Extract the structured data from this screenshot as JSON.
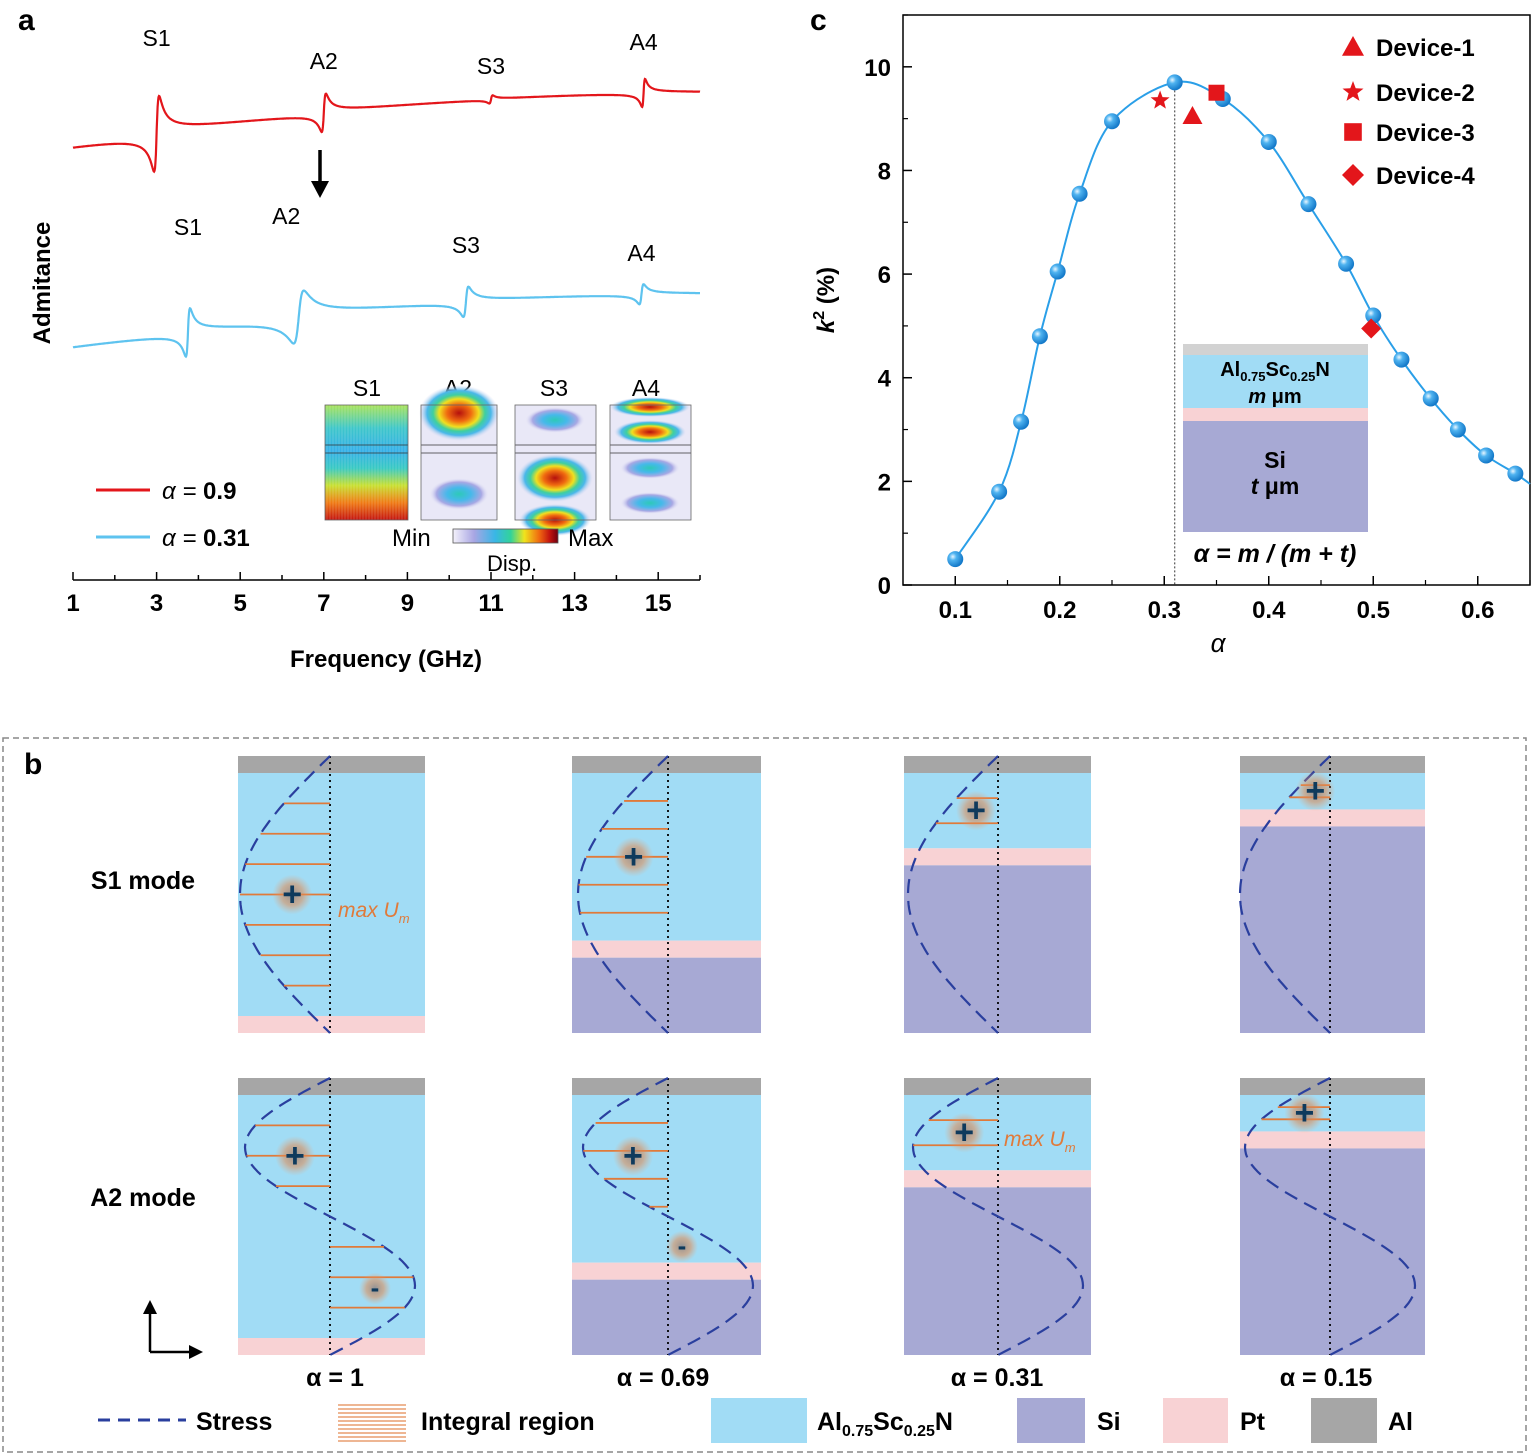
{
  "colors": {
    "red": "#e3161b",
    "blue": "#5ec3ef",
    "dot": "#2a9fe8",
    "alscn": "#a1dcf5",
    "si": "#a7a9d4",
    "pt": "#f8d2d4",
    "al": "#a6a6a6",
    "stress": "#2a3f9e",
    "integral": "#e07a3a"
  },
  "chart_data": [
    {
      "panel": "a",
      "type": "line",
      "xlabel": "Frequency (GHz)",
      "ylabel": "Admitance",
      "xlim": [
        1,
        16
      ],
      "xticks": [
        "1",
        "3",
        "5",
        "7",
        "9",
        "11",
        "13",
        "15"
      ],
      "series": [
        {
          "name": "α = 0.9",
          "legend_prefix": "α = ",
          "legend_value": "0.9",
          "color": "#e3161b",
          "resonances_ghz": [
            3.0,
            7.0,
            11.0,
            14.65
          ],
          "mode_labels": [
            "S1",
            "A2",
            "S3",
            "A4"
          ]
        },
        {
          "name": "α = 0.31",
          "legend_prefix": "α = ",
          "legend_value": "0.31",
          "color": "#5ec3ef",
          "resonances_ghz": [
            3.75,
            6.4,
            10.4,
            14.6
          ],
          "mode_labels": [
            "S1",
            "A2",
            "S3",
            "A4"
          ]
        }
      ],
      "inset": {
        "mode_titles": [
          "S1",
          "A2",
          "S3",
          "A4"
        ],
        "colorbar_min": "Min",
        "colorbar_max": "Max",
        "colorbar_label": "Disp."
      }
    },
    {
      "panel": "c",
      "type": "scatter",
      "xlabel": "α",
      "ylabel_main": "k",
      "ylabel_sup": "2",
      "ylabel_rest": " (%)",
      "xlim": [
        0.05,
        0.65
      ],
      "ylim": [
        0,
        11
      ],
      "xticks": [
        0.1,
        0.2,
        0.3,
        0.4,
        0.5,
        0.6
      ],
      "yticks": [
        0,
        2,
        4,
        6,
        8,
        10
      ],
      "x": [
        0.1,
        0.142,
        0.163,
        0.181,
        0.198,
        0.219,
        0.25,
        0.31,
        0.356,
        0.4,
        0.438,
        0.474,
        0.5,
        0.527,
        0.555,
        0.581,
        0.608,
        0.636
      ],
      "y": [
        0.5,
        1.8,
        3.15,
        4.8,
        6.05,
        7.55,
        8.95,
        9.7,
        9.38,
        8.55,
        7.35,
        6.2,
        5.2,
        4.35,
        3.6,
        3.0,
        2.5,
        2.15
      ],
      "devices": [
        {
          "name": "Device-1",
          "marker": "triangle",
          "x": 0.327,
          "y": 9.05
        },
        {
          "name": "Device-2",
          "marker": "star",
          "x": 0.296,
          "y": 9.35
        },
        {
          "name": "Device-3",
          "marker": "square",
          "x": 0.35,
          "y": 9.5
        },
        {
          "name": "Device-4",
          "marker": "diamond",
          "x": 0.498,
          "y": 4.95
        }
      ],
      "vline_x": 0.31,
      "inset": {
        "layer1_base": "Al",
        "layer1_sub1": "0.75",
        "layer1_mid": "Sc",
        "layer1_sub2": "0.25",
        "layer1_end": "N",
        "layer1_thick_var": "m",
        "layer1_thick_unit": " μm",
        "layer2": "Si",
        "layer2_thick_var": "t",
        "layer2_thick_unit": " μm",
        "formula": "α = m / (m + t)"
      }
    }
  ],
  "panel_labels": {
    "a": "a",
    "b": "b",
    "c": "c"
  },
  "panel_b": {
    "row_labels": [
      "S1 mode",
      "A2 mode"
    ],
    "alphas": [
      "α = 1",
      "α = 0.69",
      "α = 0.31",
      "α = 0.15"
    ],
    "annotation_prefix": "max U",
    "annotation_sub": "m",
    "plus": "+",
    "minus": "-",
    "legend": {
      "stress": "Stress",
      "integral": "Integral region",
      "alscn_base": "Al",
      "alscn_sub1": "0.75",
      "alscn_mid": "Sc",
      "alscn_sub2": "0.25",
      "alscn_end": "N",
      "si": "Si",
      "pt": "Pt",
      "al": "Al"
    }
  }
}
